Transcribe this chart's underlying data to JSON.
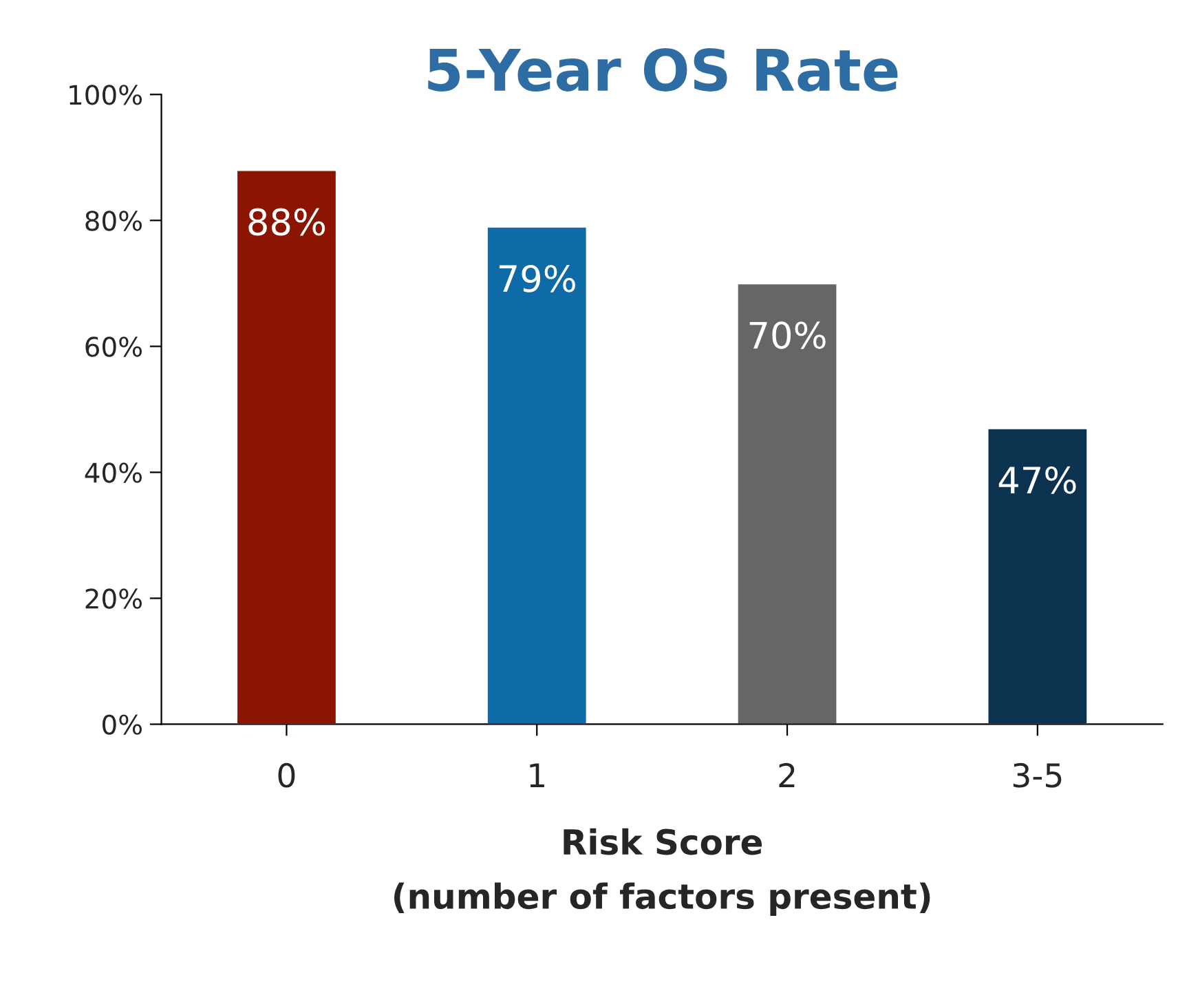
{
  "chart_data": {
    "type": "bar",
    "title": "5-Year OS Rate",
    "xlabel": "Risk Score\n(number of factors present)",
    "categories": [
      "0",
      "1",
      "2",
      "3-5"
    ],
    "values": [
      88,
      79,
      70,
      47
    ],
    "colors": [
      "#8b1500",
      "#0e6ba8",
      "#666666",
      "#0b3350"
    ],
    "value_labels": [
      "88%",
      "79%",
      "70%",
      "47%"
    ],
    "ylim": [
      0,
      100
    ],
    "yticks": [
      {
        "value": 0,
        "label": "0%"
      },
      {
        "value": 20,
        "label": "20%"
      },
      {
        "value": 40,
        "label": "40%"
      },
      {
        "value": 60,
        "label": "60%"
      },
      {
        "value": 80,
        "label": "80%"
      },
      {
        "value": 100,
        "label": "100%"
      }
    ],
    "grid": false,
    "legend": false
  }
}
